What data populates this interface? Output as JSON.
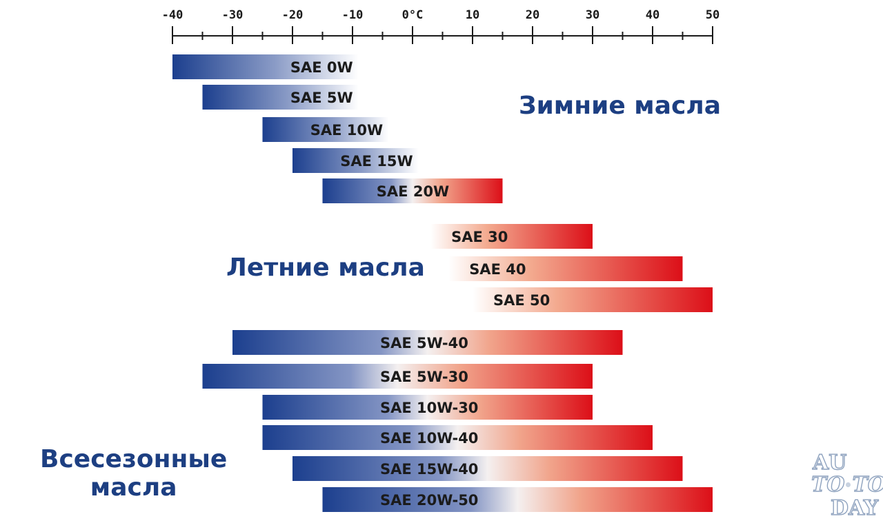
{
  "chart_data": {
    "type": "bar",
    "subtype": "range",
    "x_axis": {
      "min": -40,
      "max": 50,
      "major_ticks": [
        -40,
        -30,
        -20,
        -10,
        0,
        10,
        20,
        30,
        40,
        50
      ],
      "minor_step": 5,
      "tick_labels": [
        "-40",
        "-30",
        "-20",
        "-10",
        "0°C",
        "10",
        "20",
        "30",
        "40",
        "50"
      ],
      "position": "top"
    },
    "colors": {
      "cold": "#1c3f8e",
      "hot": "#dc0f18",
      "group_label": "#1d3f82"
    },
    "groups": [
      {
        "name": "Зимние масла",
        "series": [
          {
            "label": "SAE 0W",
            "range": [
              -40,
              -9
            ],
            "gradient": "cold"
          },
          {
            "label": "SAE 5W",
            "range": [
              -35,
              -9
            ],
            "gradient": "cold"
          },
          {
            "label": "SAE 10W",
            "range": [
              -25,
              -4
            ],
            "gradient": "cold"
          },
          {
            "label": "SAE 15W",
            "range": [
              -20,
              1
            ],
            "gradient": "cold"
          },
          {
            "label": "SAE 20W",
            "range": [
              -15,
              15
            ],
            "gradient": "cold-hot"
          }
        ]
      },
      {
        "name": "Летние масла",
        "series": [
          {
            "label": "SAE 30",
            "range": [
              3,
              30
            ],
            "gradient": "hot"
          },
          {
            "label": "SAE 40",
            "range": [
              6,
              45
            ],
            "gradient": "hot"
          },
          {
            "label": "SAE 50",
            "range": [
              10,
              50
            ],
            "gradient": "hot"
          }
        ]
      },
      {
        "name_lines": [
          "Всесезонные",
          "масла"
        ],
        "series": [
          {
            "label": "SAE 5W-40",
            "range": [
              -30,
              35
            ],
            "gradient": "cold-hot"
          },
          {
            "label": "SAE 5W-30",
            "range": [
              -35,
              30
            ],
            "gradient": "cold-hot"
          },
          {
            "label": "SAE 10W-30",
            "range": [
              -25,
              30
            ],
            "gradient": "cold-hot"
          },
          {
            "label": "SAE 10W-40",
            "range": [
              -25,
              40
            ],
            "gradient": "cold-hot"
          },
          {
            "label": "SAE 15W-40",
            "range": [
              -20,
              45
            ],
            "gradient": "cold-hot"
          },
          {
            "label": "SAE 20W-50",
            "range": [
              -15,
              50
            ],
            "gradient": "cold-hot"
          }
        ]
      }
    ]
  },
  "watermark": {
    "line1": "AU",
    "line2a": "TO",
    "line2b": "TO",
    "line3": "DAY"
  }
}
